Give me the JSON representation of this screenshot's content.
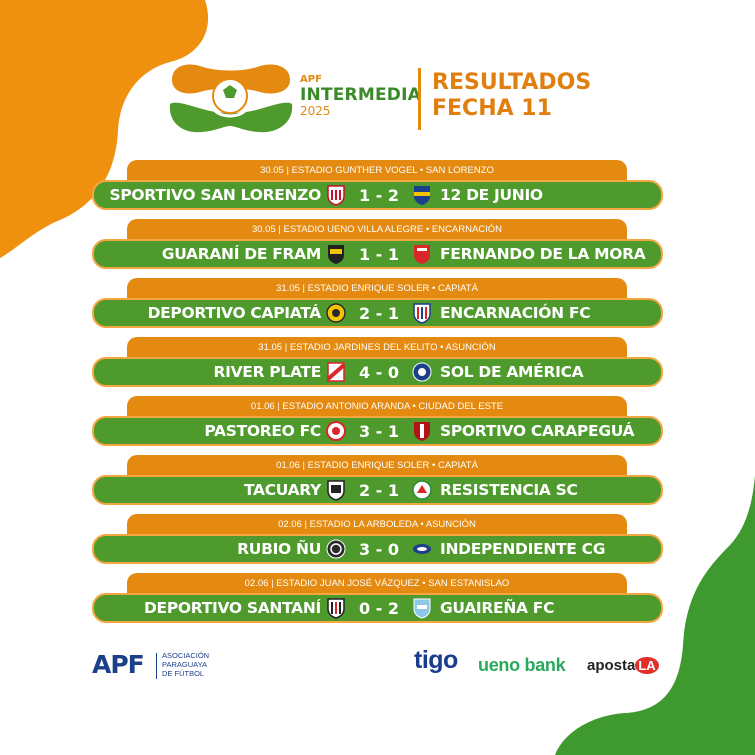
{
  "header": {
    "logo_apf": "APF",
    "logo_main": "INTERMEDIA",
    "logo_year": "2025",
    "title_line1": "RESULTADOS",
    "title_line2": "FECHA 11"
  },
  "matches": [
    {
      "info": "30.05 | ESTADIO GUNTHER VOGEL • SAN LORENZO",
      "home": "SPORTIVO SAN LORENZO",
      "score": "1 - 2",
      "away": "12 DE JUNIO"
    },
    {
      "info": "30.05 | ESTADIO UENO VILLA ALEGRE • ENCARNACIÓN",
      "home": "GUARANÍ DE FRAM",
      "score": "1 - 1",
      "away": "FERNANDO DE LA MORA"
    },
    {
      "info": "31.05 | ESTADIO ENRIQUE SOLER • CAPIATÁ",
      "home": "DEPORTIVO CAPIATÁ",
      "score": "2 - 1",
      "away": "ENCARNACIÓN FC"
    },
    {
      "info": "31.05 | ESTADIO JARDINES DEL KELITO • ASUNCIÓN",
      "home": "RIVER PLATE",
      "score": "4 - 0",
      "away": "SOL DE AMÉRICA"
    },
    {
      "info": "01.06 | ESTADIO ANTONIO ARANDA • CIUDAD DEL ESTE",
      "home": "PASTOREO FC",
      "score": "3 - 1",
      "away": "SPORTIVO CARAPEGUÁ"
    },
    {
      "info": "01.06 | ESTADIO ENRIQUE SOLER • CAPIATÁ",
      "home": "TACUARY",
      "score": "2 - 1",
      "away": "RESISTENCIA SC"
    },
    {
      "info": "02.06 | ESTADIO LA ARBOLEDA • ASUNCIÓN",
      "home": "RUBIO ÑU",
      "score": "3 - 0",
      "away": "INDEPENDIENTE CG"
    },
    {
      "info": "02.06 | ESTADIO JUAN JOSÉ VÁZQUEZ • SAN ESTANISLAO",
      "home": "DEPORTIVO SANTANÍ",
      "score": "0 - 2",
      "away": "GUAIREÑA FC"
    }
  ],
  "footer": {
    "apf_logo": "APF",
    "apf_line1": "ASOCIACIÓN",
    "apf_line2": "PARAGUAYA",
    "apf_line3": "DE FÚTBOL",
    "sponsor1": "tigo",
    "sponsor2": "ueno bank",
    "sponsor3_prefix": "aposta",
    "sponsor3_badge": "LA"
  },
  "colors": {
    "orange": "#e48a10",
    "green": "#4f9a2c",
    "white": "#ffffff",
    "apf_blue": "#1c3f8a"
  }
}
